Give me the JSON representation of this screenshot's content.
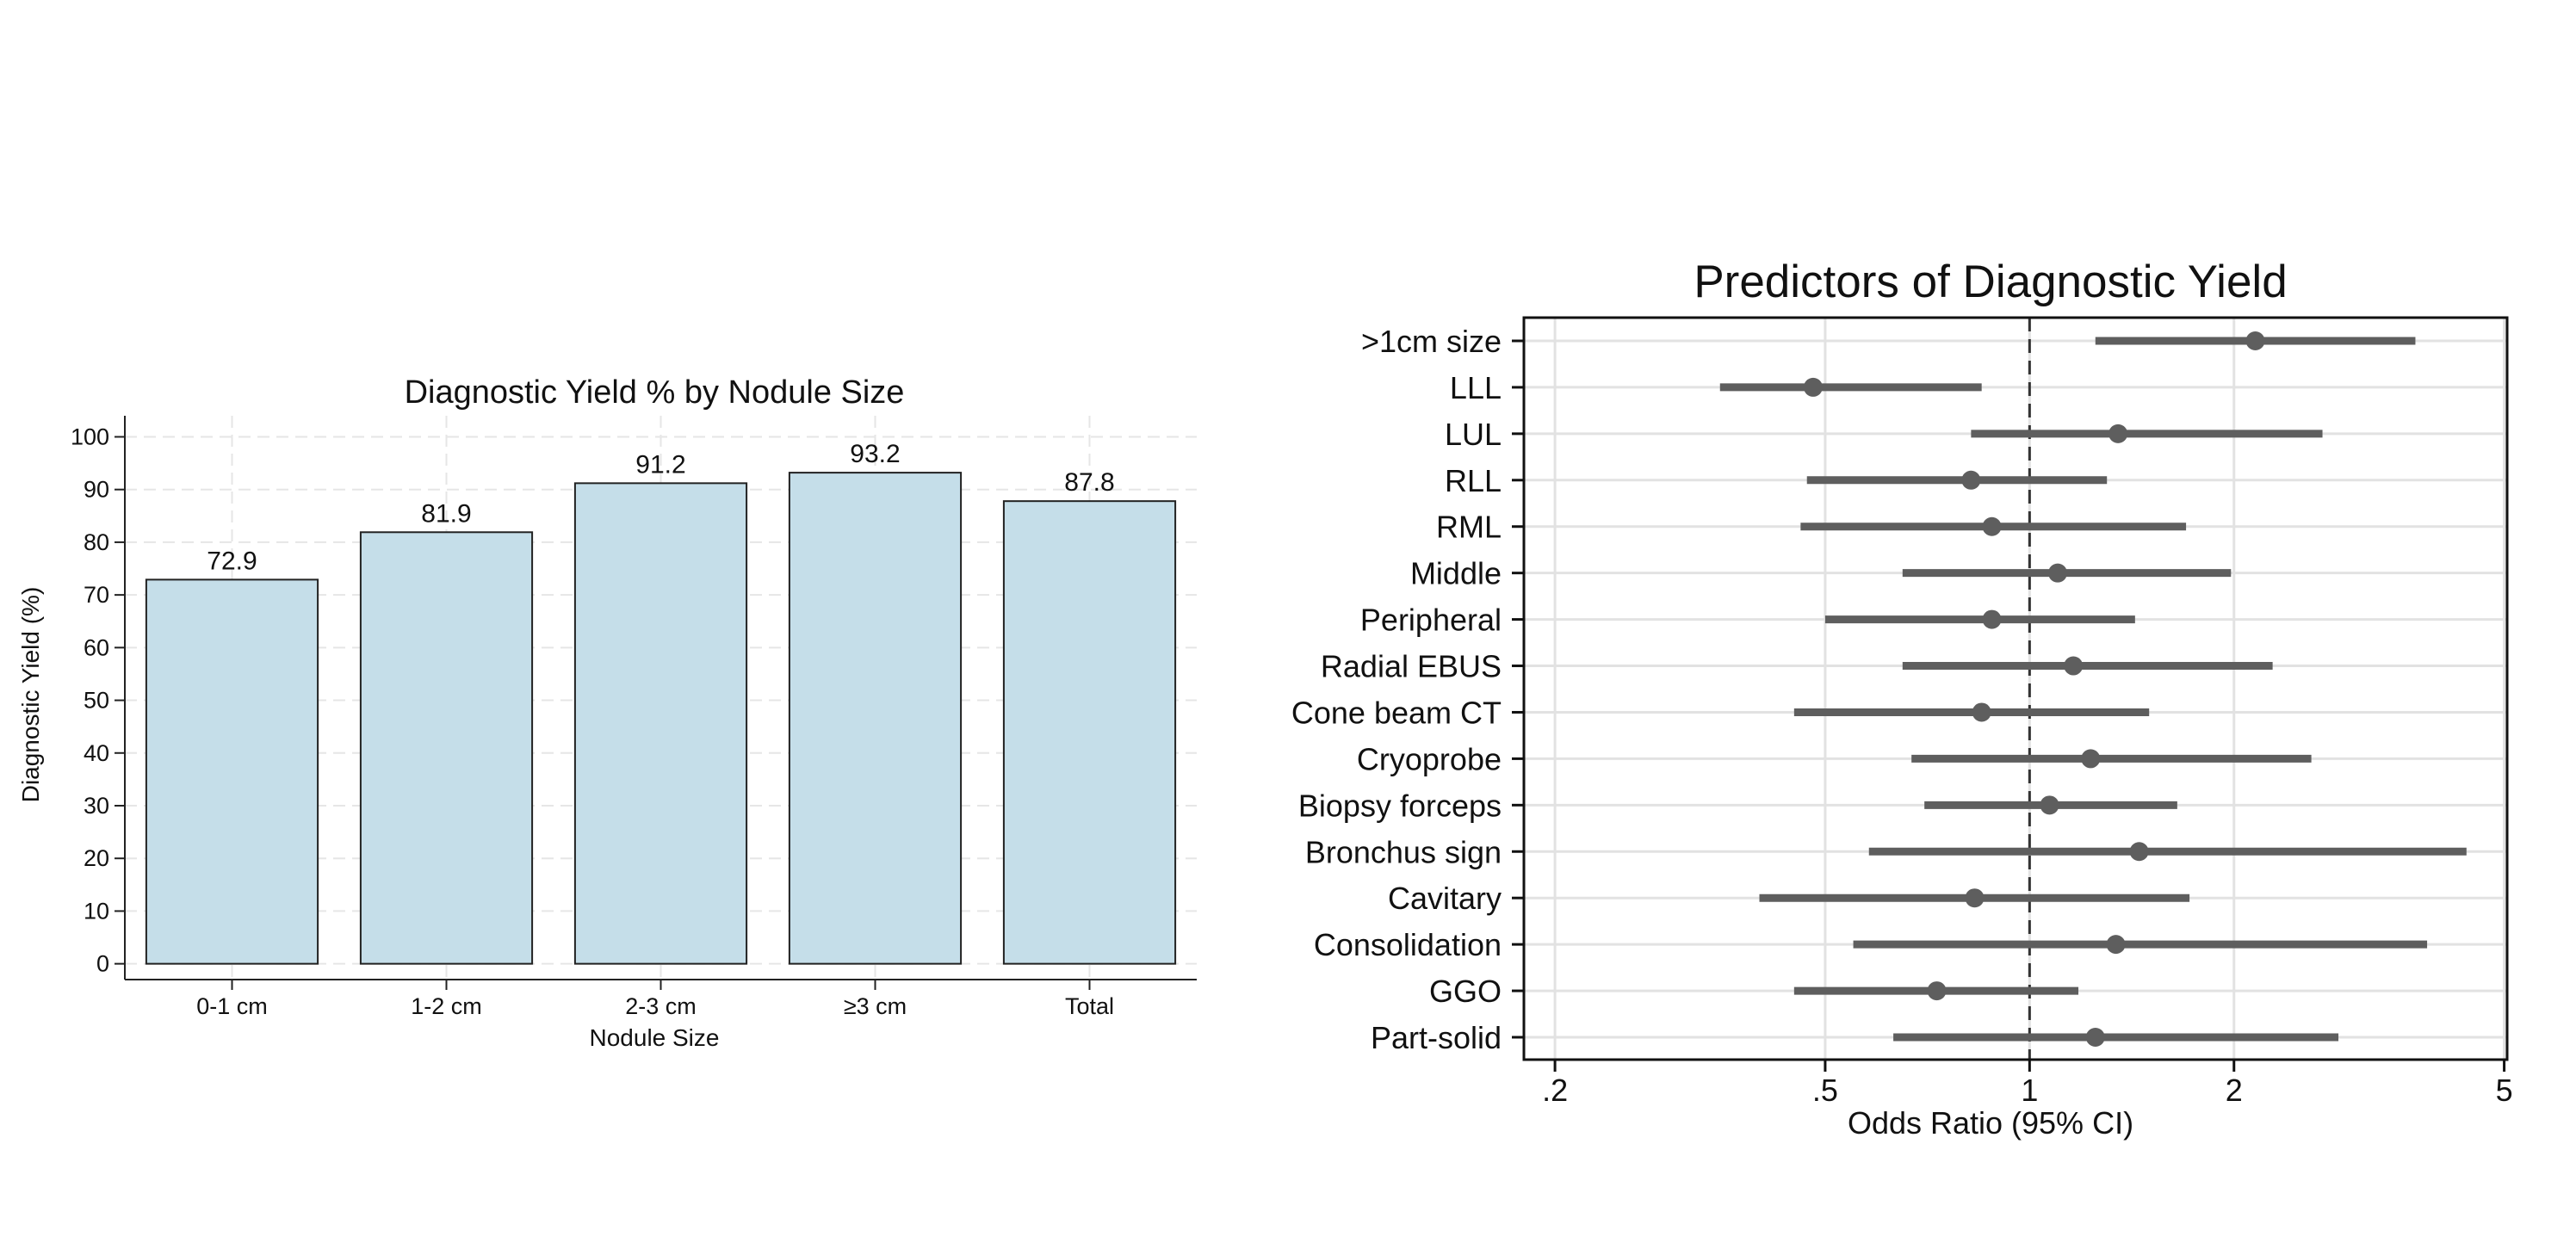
{
  "chart_data": [
    {
      "type": "bar",
      "title": "Diagnostic Yield % by Nodule Size",
      "xlabel": "Nodule Size",
      "ylabel": "Diagnostic Yield (%)",
      "categories": [
        "0-1 cm",
        "1-2 cm",
        "2-3 cm",
        "≥3 cm",
        "Total"
      ],
      "values": [
        72.9,
        81.9,
        91.2,
        93.2,
        87.8
      ],
      "data_labels": [
        "72.9",
        "81.9",
        "91.2",
        "93.2",
        "87.8"
      ],
      "ylim": [
        -3,
        104
      ],
      "yticks": [
        0,
        10,
        20,
        30,
        40,
        50,
        60,
        70,
        80,
        90,
        100
      ],
      "grid": true,
      "bar_color": "#c5dee9",
      "bar_edge_color": "#222222"
    },
    {
      "type": "forest",
      "title": "Predictors of Diagnostic Yield",
      "xlabel": "Odds Ratio (95% CI)",
      "x_scale": "log",
      "xlim": [
        0.18,
        5.05
      ],
      "xticks": [
        0.2,
        0.5,
        1,
        2,
        5
      ],
      "xtick_labels": [
        ".2",
        ".5",
        "1",
        "2",
        "5"
      ],
      "reference_line": 1,
      "grid": true,
      "marker_color": "#5e5e5e",
      "rows": [
        {
          "label": ">1cm size",
          "or": 2.15,
          "lo": 1.25,
          "hi": 3.7
        },
        {
          "label": "LLL",
          "or": 0.48,
          "lo": 0.35,
          "hi": 0.85
        },
        {
          "label": "LUL",
          "or": 1.35,
          "lo": 0.82,
          "hi": 2.7
        },
        {
          "label": "RLL",
          "or": 0.82,
          "lo": 0.47,
          "hi": 1.3
        },
        {
          "label": "RML",
          "or": 0.88,
          "lo": 0.46,
          "hi": 1.7
        },
        {
          "label": "Middle",
          "or": 1.1,
          "lo": 0.65,
          "hi": 1.98
        },
        {
          "label": "Peripheral",
          "or": 0.88,
          "lo": 0.5,
          "hi": 1.43
        },
        {
          "label": "Radial EBUS",
          "or": 1.16,
          "lo": 0.65,
          "hi": 2.28
        },
        {
          "label": "Cone beam CT",
          "or": 0.85,
          "lo": 0.45,
          "hi": 1.5
        },
        {
          "label": "Cryoprobe",
          "or": 1.23,
          "lo": 0.67,
          "hi": 2.6
        },
        {
          "label": "Biopsy forceps",
          "or": 1.07,
          "lo": 0.7,
          "hi": 1.65
        },
        {
          "label": "Bronchus sign",
          "or": 1.45,
          "lo": 0.58,
          "hi": 4.4
        },
        {
          "label": "Cavitary",
          "or": 0.83,
          "lo": 0.4,
          "hi": 1.72
        },
        {
          "label": "Consolidation",
          "or": 1.34,
          "lo": 0.55,
          "hi": 3.85
        },
        {
          "label": "GGO",
          "or": 0.73,
          "lo": 0.45,
          "hi": 1.18
        },
        {
          "label": "Part-solid",
          "or": 1.25,
          "lo": 0.63,
          "hi": 2.85
        }
      ]
    }
  ]
}
